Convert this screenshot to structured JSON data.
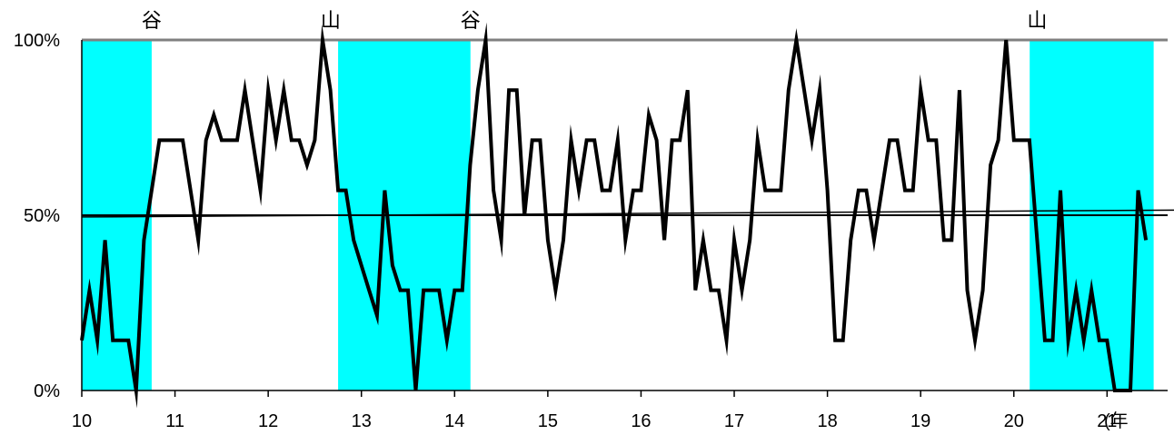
{
  "chart_data": {
    "type": "line",
    "title": "",
    "xlabel": "",
    "ylabel": "",
    "x_range": [
      10.0,
      21.65
    ],
    "ylim": [
      0,
      100
    ],
    "y_ticks": [
      {
        "value": 0,
        "label": "0%"
      },
      {
        "value": 50,
        "label": "50%"
      },
      {
        "value": 100,
        "label": "100%"
      }
    ],
    "x_ticks": [
      {
        "value": 10,
        "label": "10"
      },
      {
        "value": 11,
        "label": "11"
      },
      {
        "value": 12,
        "label": "12"
      },
      {
        "value": 13,
        "label": "13"
      },
      {
        "value": 14,
        "label": "14"
      },
      {
        "value": 15,
        "label": "15"
      },
      {
        "value": 16,
        "label": "16"
      },
      {
        "value": 17,
        "label": "17"
      },
      {
        "value": 18,
        "label": "18"
      },
      {
        "value": 19,
        "label": "19"
      },
      {
        "value": 20,
        "label": "20"
      },
      {
        "value": 21,
        "label": "21"
      }
    ],
    "x_unit_label": "(年",
    "shaded_periods": [
      {
        "from": 10.0,
        "to": 10.75
      },
      {
        "from": 12.75,
        "to": 14.17
      },
      {
        "from": 20.17,
        "to": 21.5
      }
    ],
    "shade_color": "#00ffff",
    "turning_points": [
      {
        "x": 10.75,
        "label": "谷"
      },
      {
        "x": 12.67,
        "label": "山"
      },
      {
        "x": 14.17,
        "label": "谷"
      },
      {
        "x": 20.25,
        "label": "山"
      }
    ],
    "reference_lines": [
      {
        "y": 50,
        "color": "#000000"
      },
      {
        "y": 100,
        "color": "#808080"
      }
    ],
    "trend_line": {
      "from": [
        10.0,
        49.5
      ],
      "to": [
        21.92,
        51.5
      ]
    },
    "series": [
      {
        "color": "#000000",
        "points": [
          [
            10.0,
            14.3
          ],
          [
            10.083,
            28.6
          ],
          [
            10.167,
            14.3
          ],
          [
            10.25,
            42.9
          ],
          [
            10.333,
            14.3
          ],
          [
            10.417,
            14.3
          ],
          [
            10.5,
            14.3
          ],
          [
            10.583,
            0
          ],
          [
            10.667,
            42.9
          ],
          [
            10.75,
            57.1
          ],
          [
            10.833,
            71.4
          ],
          [
            10.917,
            71.4
          ],
          [
            11.0,
            71.4
          ],
          [
            11.083,
            71.4
          ],
          [
            11.167,
            57.1
          ],
          [
            11.25,
            42.9
          ],
          [
            11.333,
            71.4
          ],
          [
            11.417,
            78.6
          ],
          [
            11.5,
            71.4
          ],
          [
            11.583,
            71.4
          ],
          [
            11.667,
            71.4
          ],
          [
            11.75,
            85.7
          ],
          [
            11.833,
            71.4
          ],
          [
            11.917,
            57.1
          ],
          [
            12.0,
            85.7
          ],
          [
            12.083,
            71.4
          ],
          [
            12.167,
            85.7
          ],
          [
            12.25,
            71.4
          ],
          [
            12.333,
            71.4
          ],
          [
            12.417,
            64.3
          ],
          [
            12.5,
            71.4
          ],
          [
            12.583,
            100
          ],
          [
            12.667,
            85.7
          ],
          [
            12.75,
            57.1
          ],
          [
            12.833,
            57.1
          ],
          [
            12.917,
            42.9
          ],
          [
            13.0,
            35.7
          ],
          [
            13.083,
            28.6
          ],
          [
            13.167,
            21.4
          ],
          [
            13.25,
            57.1
          ],
          [
            13.333,
            35.7
          ],
          [
            13.417,
            28.6
          ],
          [
            13.5,
            28.6
          ],
          [
            13.583,
            0
          ],
          [
            13.667,
            28.6
          ],
          [
            13.75,
            28.6
          ],
          [
            13.833,
            28.6
          ],
          [
            13.917,
            14.3
          ],
          [
            14.0,
            28.6
          ],
          [
            14.083,
            28.6
          ],
          [
            14.167,
            64.3
          ],
          [
            14.25,
            85.7
          ],
          [
            14.333,
            100
          ],
          [
            14.417,
            57.1
          ],
          [
            14.5,
            42.9
          ],
          [
            14.583,
            85.7
          ],
          [
            14.667,
            85.7
          ],
          [
            14.75,
            50.0
          ],
          [
            14.833,
            71.4
          ],
          [
            14.917,
            71.4
          ],
          [
            15.0,
            42.9
          ],
          [
            15.083,
            28.6
          ],
          [
            15.167,
            42.9
          ],
          [
            15.25,
            71.4
          ],
          [
            15.333,
            57.1
          ],
          [
            15.417,
            71.4
          ],
          [
            15.5,
            71.4
          ],
          [
            15.583,
            57.1
          ],
          [
            15.667,
            57.1
          ],
          [
            15.75,
            71.4
          ],
          [
            15.833,
            42.9
          ],
          [
            15.917,
            57.1
          ],
          [
            16.0,
            57.1
          ],
          [
            16.083,
            78.6
          ],
          [
            16.167,
            71.4
          ],
          [
            16.25,
            42.9
          ],
          [
            16.333,
            71.4
          ],
          [
            16.417,
            71.4
          ],
          [
            16.5,
            85.7
          ],
          [
            16.583,
            28.6
          ],
          [
            16.667,
            42.9
          ],
          [
            16.75,
            28.6
          ],
          [
            16.833,
            28.6
          ],
          [
            16.917,
            14.3
          ],
          [
            17.0,
            42.9
          ],
          [
            17.083,
            28.6
          ],
          [
            17.167,
            42.9
          ],
          [
            17.25,
            71.4
          ],
          [
            17.333,
            57.1
          ],
          [
            17.417,
            57.1
          ],
          [
            17.5,
            57.1
          ],
          [
            17.583,
            85.7
          ],
          [
            17.667,
            100
          ],
          [
            17.75,
            85.7
          ],
          [
            17.833,
            71.4
          ],
          [
            17.917,
            85.7
          ],
          [
            18.0,
            57.1
          ],
          [
            18.083,
            14.3
          ],
          [
            18.167,
            14.3
          ],
          [
            18.25,
            42.9
          ],
          [
            18.333,
            57.1
          ],
          [
            18.417,
            57.1
          ],
          [
            18.5,
            42.9
          ],
          [
            18.583,
            57.1
          ],
          [
            18.667,
            71.4
          ],
          [
            18.75,
            71.4
          ],
          [
            18.833,
            57.1
          ],
          [
            18.917,
            57.1
          ],
          [
            19.0,
            85.7
          ],
          [
            19.083,
            71.4
          ],
          [
            19.167,
            71.4
          ],
          [
            19.25,
            42.9
          ],
          [
            19.333,
            42.9
          ],
          [
            19.417,
            85.7
          ],
          [
            19.5,
            28.6
          ],
          [
            19.583,
            14.3
          ],
          [
            19.667,
            28.6
          ],
          [
            19.75,
            64.3
          ],
          [
            19.833,
            71.4
          ],
          [
            19.917,
            100
          ],
          [
            20.0,
            71.4
          ],
          [
            20.083,
            71.4
          ],
          [
            20.167,
            71.4
          ],
          [
            20.25,
            42.9
          ],
          [
            20.333,
            14.3
          ],
          [
            20.417,
            14.3
          ],
          [
            20.5,
            57.1
          ],
          [
            20.583,
            14.3
          ],
          [
            20.667,
            28.6
          ],
          [
            20.75,
            14.3
          ],
          [
            20.833,
            28.6
          ],
          [
            20.917,
            14.3
          ],
          [
            21.0,
            14.3
          ],
          [
            21.083,
            0
          ],
          [
            21.167,
            0
          ],
          [
            21.25,
            0
          ],
          [
            21.333,
            57.1
          ],
          [
            21.417,
            42.9
          ]
        ]
      }
    ]
  }
}
